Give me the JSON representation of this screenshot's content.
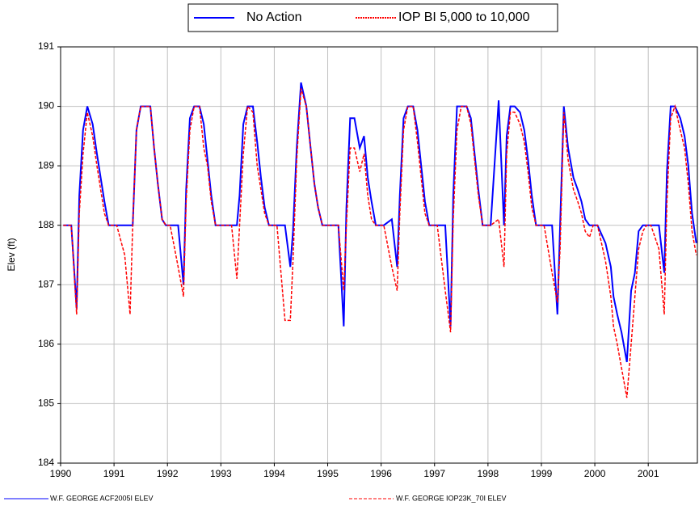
{
  "chart_data": {
    "type": "line",
    "y_label": "Elev (ft)",
    "x": [
      1990.05,
      1990.2,
      1990.3,
      1990.35,
      1990.42,
      1990.5,
      1990.6,
      1990.68,
      1990.75,
      1990.82,
      1990.9,
      1990.97,
      1991.05,
      1991.2,
      1991.3,
      1991.35,
      1991.42,
      1991.5,
      1991.6,
      1991.68,
      1991.75,
      1991.82,
      1991.9,
      1991.97,
      1992.05,
      1992.2,
      1992.3,
      1992.35,
      1992.42,
      1992.5,
      1992.6,
      1992.68,
      1992.75,
      1992.82,
      1992.9,
      1992.97,
      1993.05,
      1993.2,
      1993.3,
      1993.35,
      1993.42,
      1993.5,
      1993.6,
      1993.68,
      1993.75,
      1993.82,
      1993.9,
      1993.97,
      1994.05,
      1994.2,
      1994.3,
      1994.35,
      1994.42,
      1994.5,
      1994.6,
      1994.68,
      1994.75,
      1994.82,
      1994.9,
      1994.97,
      1995.05,
      1995.2,
      1995.3,
      1995.35,
      1995.42,
      1995.5,
      1995.6,
      1995.68,
      1995.75,
      1995.82,
      1995.9,
      1995.97,
      1996.05,
      1996.2,
      1996.3,
      1996.35,
      1996.42,
      1996.5,
      1996.6,
      1996.68,
      1996.75,
      1996.82,
      1996.9,
      1996.97,
      1997.05,
      1997.2,
      1997.3,
      1997.35,
      1997.42,
      1997.5,
      1997.6,
      1997.68,
      1997.75,
      1997.82,
      1997.9,
      1997.97,
      1998.05,
      1998.2,
      1998.3,
      1998.35,
      1998.42,
      1998.5,
      1998.6,
      1998.68,
      1998.75,
      1998.82,
      1998.9,
      1998.97,
      1999.05,
      1999.2,
      1999.3,
      1999.35,
      1999.42,
      1999.5,
      1999.6,
      1999.68,
      1999.75,
      1999.82,
      1999.9,
      1999.97,
      2000.05,
      2000.2,
      2000.3,
      2000.35,
      2000.42,
      2000.5,
      2000.6,
      2000.68,
      2000.75,
      2000.82,
      2000.9,
      2000.97,
      2001.05,
      2001.2,
      2001.3,
      2001.35,
      2001.42,
      2001.5,
      2001.6,
      2001.68,
      2001.75,
      2001.82,
      2001.9
    ],
    "series": [
      {
        "name": "No Action",
        "footer_name": "W.F. GEORGE ACF2005I ELEV",
        "color": "#0000ff",
        "style": "solid",
        "values": [
          188,
          188,
          186.6,
          188.5,
          189.6,
          190,
          189.7,
          189.2,
          188.8,
          188.4,
          188,
          188,
          188,
          188,
          188,
          188,
          189.6,
          190,
          190,
          190,
          189.3,
          188.7,
          188.1,
          188,
          188,
          188,
          187,
          188.6,
          189.8,
          190,
          190,
          189.7,
          189.1,
          188.5,
          188,
          188,
          188,
          188,
          188,
          188.5,
          189.7,
          190,
          190,
          189.4,
          188.8,
          188.3,
          188,
          188,
          188,
          188,
          187.3,
          187.9,
          189.3,
          190.4,
          190,
          189.3,
          188.7,
          188.3,
          188,
          188,
          188,
          188,
          186.3,
          188.3,
          189.8,
          189.8,
          189.3,
          189.5,
          188.8,
          188.4,
          188,
          188,
          188,
          188.1,
          187.3,
          188.5,
          189.8,
          190,
          190,
          189.6,
          189,
          188.4,
          188,
          188,
          188,
          188,
          186.3,
          188.5,
          190,
          190,
          190,
          189.8,
          189.2,
          188.6,
          188,
          188,
          188,
          190.1,
          188,
          189.5,
          190,
          190,
          189.9,
          189.6,
          189.1,
          188.5,
          188,
          188,
          188,
          188,
          186.5,
          188,
          190,
          189.3,
          188.8,
          188.6,
          188.4,
          188.1,
          188,
          188,
          188,
          187.7,
          187.3,
          186.8,
          186.5,
          186.2,
          185.7,
          186.9,
          187.2,
          187.9,
          188,
          188,
          188,
          188,
          187.2,
          188.9,
          190,
          190,
          189.8,
          189.5,
          189,
          188.2,
          187.7
        ]
      },
      {
        "name": "IOP BI 5,000 to 10,000",
        "footer_name": "W.F. GEORGE IOP23K_70I ELEV",
        "color": "#ff0000",
        "style": "dashed",
        "values": [
          188,
          188,
          186.5,
          188.2,
          189.2,
          189.9,
          189.5,
          189,
          188.6,
          188.2,
          188,
          188,
          188,
          187.5,
          186.5,
          188,
          189.6,
          190,
          190,
          190,
          189.3,
          188.7,
          188.1,
          188,
          188,
          187.3,
          186.8,
          188.4,
          189.6,
          190,
          190,
          189.3,
          189,
          188.4,
          188,
          188,
          188,
          188,
          187.1,
          188,
          189.2,
          190,
          189.9,
          189,
          188.6,
          188.2,
          188,
          188,
          188,
          186.4,
          186.4,
          187.4,
          189.1,
          190.3,
          190,
          189.3,
          188.7,
          188.3,
          188,
          188,
          188,
          188,
          186.9,
          188,
          189.3,
          189.3,
          188.9,
          189.2,
          188.5,
          188.1,
          188,
          188,
          188,
          187.3,
          186.9,
          188.2,
          189.6,
          190,
          190,
          189.4,
          188.8,
          188.2,
          188,
          188,
          188,
          186.9,
          186.2,
          188.1,
          189.6,
          190,
          190,
          189.7,
          189.1,
          188.5,
          188,
          188,
          188,
          188.1,
          187.3,
          189.2,
          189.9,
          189.9,
          189.7,
          189.4,
          188.9,
          188.3,
          188,
          188,
          188,
          187.2,
          186.7,
          187.6,
          189.9,
          189.1,
          188.6,
          188.4,
          188.2,
          187.9,
          187.8,
          188,
          188,
          187.4,
          186.8,
          186.3,
          186,
          185.6,
          185.1,
          186,
          186.8,
          187.6,
          187.9,
          188,
          188,
          187.6,
          186.5,
          188.4,
          189.8,
          190,
          189.6,
          189.3,
          188.7,
          187.9,
          187.5
        ]
      }
    ],
    "xlim": [
      1990,
      2001.92
    ],
    "xticks": [
      1990,
      1991,
      1992,
      1993,
      1994,
      1995,
      1996,
      1997,
      1998,
      1999,
      2000,
      2001
    ],
    "ylim": [
      184,
      191
    ],
    "yticks": [
      184,
      185,
      186,
      187,
      188,
      189,
      190,
      191
    ],
    "grid": true
  }
}
